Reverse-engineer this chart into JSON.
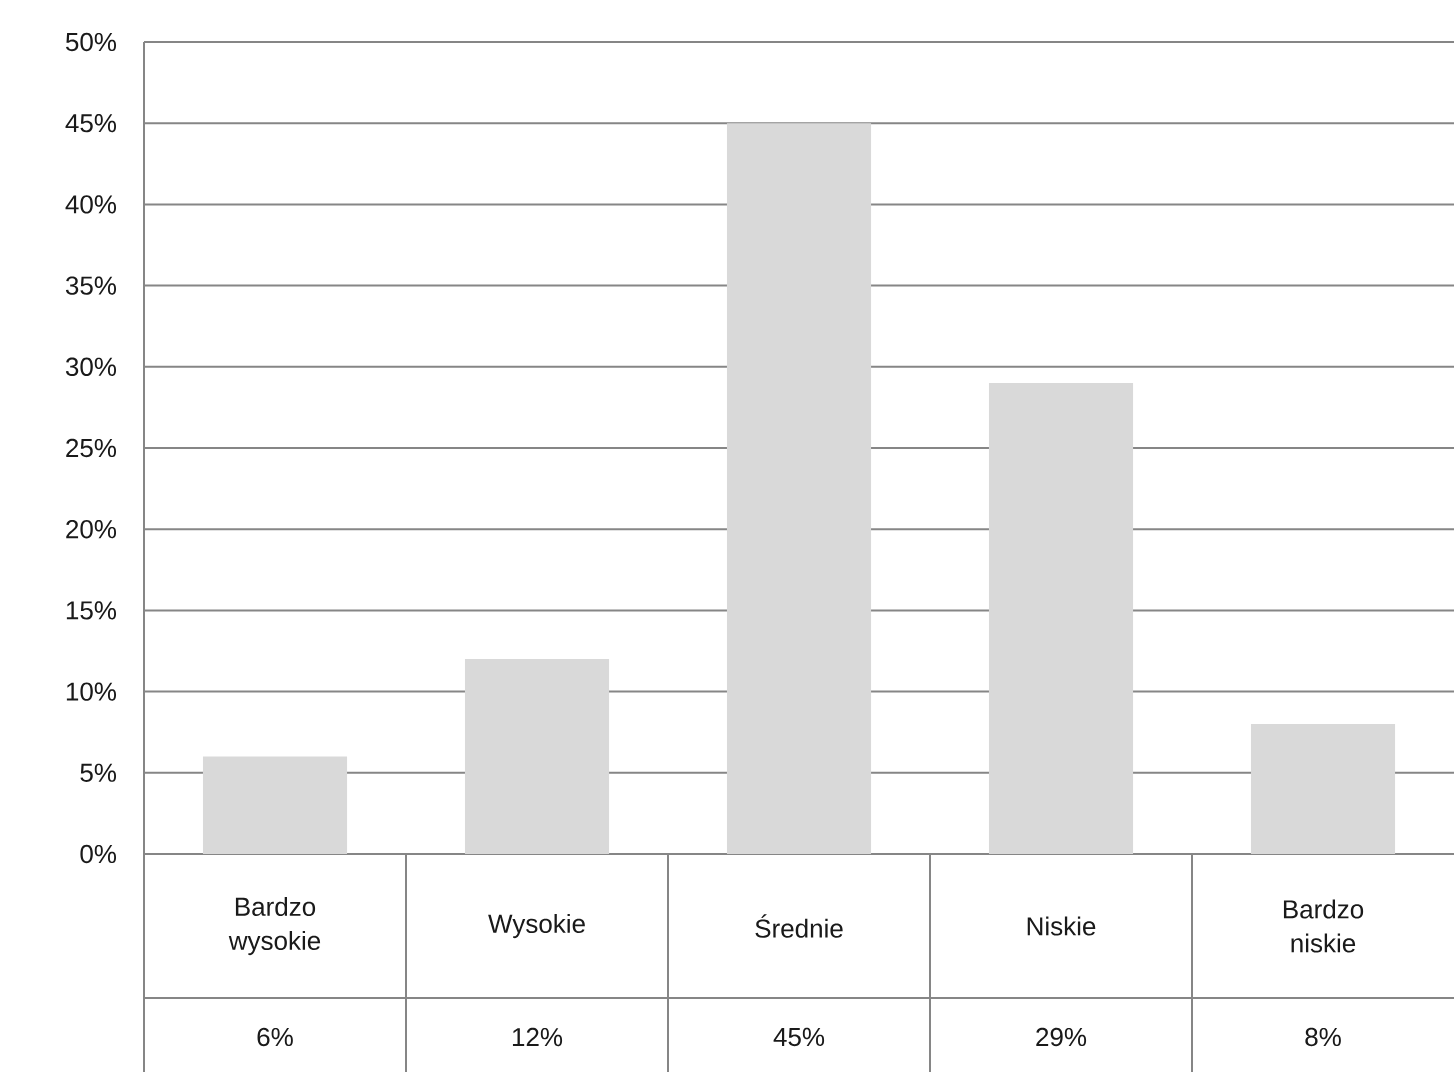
{
  "chart_data": {
    "type": "bar",
    "categories": [
      "Bardzo wysokie",
      "Wysokie",
      "Średnie",
      "Niskie",
      "Bardzo niskie"
    ],
    "values": [
      6,
      12,
      45,
      29,
      8
    ],
    "value_labels": [
      "6%",
      "12%",
      "45%",
      "29%",
      "8%"
    ],
    "color": "#d9d9d9",
    "ylim": [
      0,
      50
    ],
    "yticks": [
      {
        "value": 0,
        "label": "0%"
      },
      {
        "value": 5,
        "label": "5%"
      },
      {
        "value": 10,
        "label": "10%"
      },
      {
        "value": 15,
        "label": "15%"
      },
      {
        "value": 20,
        "label": "20%"
      },
      {
        "value": 25,
        "label": "25%"
      },
      {
        "value": 30,
        "label": "30%"
      },
      {
        "value": 35,
        "label": "35%"
      },
      {
        "value": 40,
        "label": "40%"
      },
      {
        "value": 45,
        "label": "45%"
      },
      {
        "value": 50,
        "label": "50%"
      }
    ],
    "grid": "y"
  }
}
